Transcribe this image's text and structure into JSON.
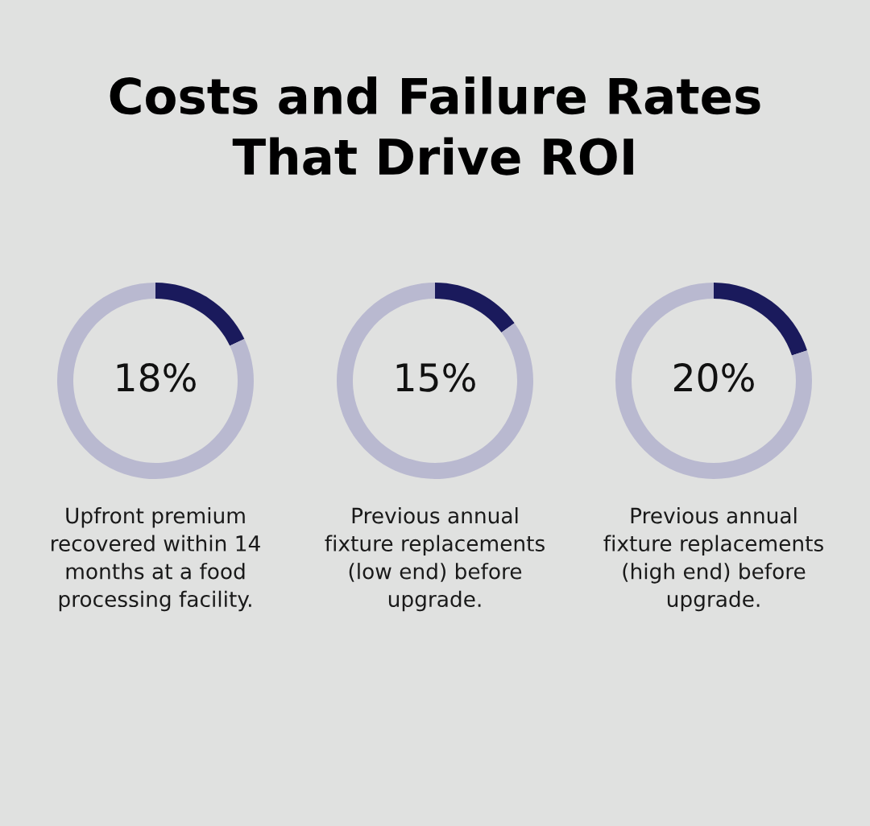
{
  "chart_data": [
    {
      "type": "donut",
      "title": "Costs and Failure Rates\nThat Drive ROI",
      "categories": [
        null,
        null
      ],
      "values": [
        18,
        82
      ],
      "colors": [
        "#1a1a5c",
        "#b9b9d0"
      ],
      "value_labels": [
        "18%",
        null
      ],
      "annotations": [
        "Upfront premium\nrecovered within 14\nmonths at a food\nprocessing facility."
      ]
    },
    {
      "type": "donut",
      "categories": [
        null,
        null
      ],
      "values": [
        15,
        85
      ],
      "colors": [
        "#1a1a5c",
        "#b9b9d0"
      ],
      "value_labels": [
        "15%",
        null
      ],
      "annotations": [
        "Previous annual\nfixture replacements\n(low end) before\nupgrade."
      ]
    },
    {
      "type": "donut",
      "categories": [
        null,
        null
      ],
      "values": [
        20,
        80
      ],
      "colors": [
        "#1a1a5c",
        "#b9b9d0"
      ],
      "value_labels": [
        "20%",
        null
      ],
      "annotations": [
        "Previous annual\nfixture replacements\n(high end) before\nupgrade."
      ]
    }
  ]
}
